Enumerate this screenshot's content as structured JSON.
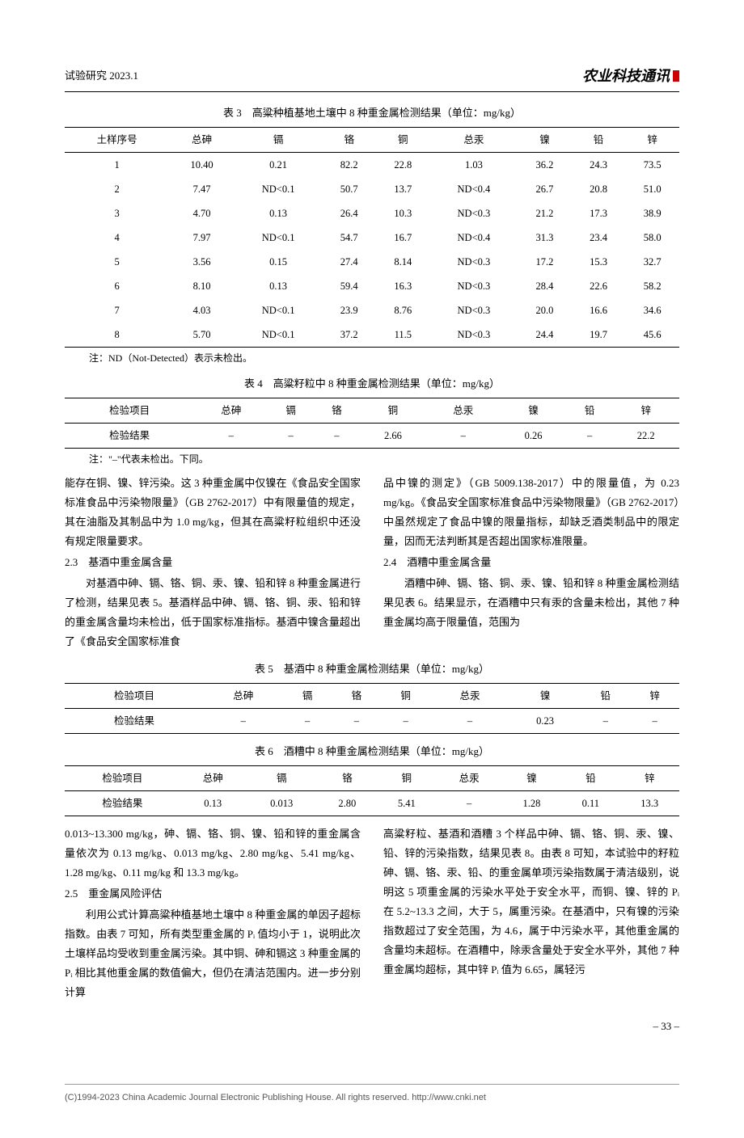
{
  "header": {
    "left": "试验研究 2023.1",
    "journal": "农业科技通讯"
  },
  "table3": {
    "caption": "表 3　高粱种植基地土壤中 8 种重金属检测结果（单位：mg/kg）",
    "headers": [
      "土样序号",
      "总砷",
      "镉",
      "铬",
      "铜",
      "总汞",
      "镍",
      "铅",
      "锌"
    ],
    "rows": [
      [
        "1",
        "10.40",
        "0.21",
        "82.2",
        "22.8",
        "1.03",
        "36.2",
        "24.3",
        "73.5"
      ],
      [
        "2",
        "7.47",
        "ND<0.1",
        "50.7",
        "13.7",
        "ND<0.4",
        "26.7",
        "20.8",
        "51.0"
      ],
      [
        "3",
        "4.70",
        "0.13",
        "26.4",
        "10.3",
        "ND<0.3",
        "21.2",
        "17.3",
        "38.9"
      ],
      [
        "4",
        "7.97",
        "ND<0.1",
        "54.7",
        "16.7",
        "ND<0.4",
        "31.3",
        "23.4",
        "58.0"
      ],
      [
        "5",
        "3.56",
        "0.15",
        "27.4",
        "8.14",
        "ND<0.3",
        "17.2",
        "15.3",
        "32.7"
      ],
      [
        "6",
        "8.10",
        "0.13",
        "59.4",
        "16.3",
        "ND<0.3",
        "28.4",
        "22.6",
        "58.2"
      ],
      [
        "7",
        "4.03",
        "ND<0.1",
        "23.9",
        "8.76",
        "ND<0.3",
        "20.0",
        "16.6",
        "34.6"
      ],
      [
        "8",
        "5.70",
        "ND<0.1",
        "37.2",
        "11.5",
        "ND<0.3",
        "24.4",
        "19.7",
        "45.6"
      ]
    ],
    "note": "注：ND（Not-Detected）表示未检出。"
  },
  "table4": {
    "caption": "表 4　高粱籽粒中 8 种重金属检测结果（单位：mg/kg）",
    "headers": [
      "检验项目",
      "总砷",
      "镉",
      "铬",
      "铜",
      "总汞",
      "镍",
      "铅",
      "锌"
    ],
    "row": [
      "检验结果",
      "–",
      "–",
      "–",
      "2.66",
      "–",
      "0.26",
      "–",
      "22.2"
    ],
    "note": "注：\"–\"代表未检出。下同。"
  },
  "body1": {
    "left_p1": "能存在铜、镍、锌污染。这 3 种重金属中仅镍在《食品安全国家标准食品中污染物限量》（GB 2762-2017）中有限量值的规定，其在油脂及其制品中为 1.0 mg/kg，但其在高粱籽粒组织中还没有规定限量要求。",
    "left_h23": "2.3　基酒中重金属含量",
    "left_p2": "对基酒中砷、镉、铬、铜、汞、镍、铅和锌 8 种重金属进行了检测，结果见表 5。基酒样品中砷、镉、铬、铜、汞、铅和锌的重金属含量均未检出，低于国家标准指标。基酒中镍含量超出了《食品安全国家标准食",
    "right_p1": "品中镍的测定》（GB 5009.138-2017）中的限量值，为 0.23 mg/kg。《食品安全国家标准食品中污染物限量》（GB 2762-2017）中虽然规定了食品中镍的限量指标，却缺乏酒类制品中的限定量，因而无法判断其是否超出国家标准限量。",
    "right_h24": "2.4　酒糟中重金属含量",
    "right_p2": "酒糟中砷、镉、铬、铜、汞、镍、铅和锌 8 种重金属检测结果见表 6。结果显示，在酒糟中只有汞的含量未检出，其他 7 种重金属均高于限量值，范围为"
  },
  "table5": {
    "caption": "表 5　基酒中 8 种重金属检测结果（单位：mg/kg）",
    "headers": [
      "检验项目",
      "总砷",
      "镉",
      "铬",
      "铜",
      "总汞",
      "镍",
      "铅",
      "锌"
    ],
    "row": [
      "检验结果",
      "–",
      "–",
      "–",
      "–",
      "–",
      "0.23",
      "–",
      "–"
    ]
  },
  "table6": {
    "caption": "表 6　酒糟中 8 种重金属检测结果（单位：mg/kg）",
    "headers": [
      "检验项目",
      "总砷",
      "镉",
      "铬",
      "铜",
      "总汞",
      "镍",
      "铅",
      "锌"
    ],
    "row": [
      "检验结果",
      "0.13",
      "0.013",
      "2.80",
      "5.41",
      "–",
      "1.28",
      "0.11",
      "13.3"
    ]
  },
  "body2": {
    "left_p1": "0.013~13.300 mg/kg，砷、镉、铬、铜、镍、铅和锌的重金属含量依次为 0.13 mg/kg、0.013 mg/kg、2.80 mg/kg、5.41 mg/kg、1.28 mg/kg、0.11 mg/kg 和 13.3 mg/kg。",
    "left_h25": "2.5　重金属风险评估",
    "left_p2": "利用公式计算高粱种植基地土壤中 8 种重金属的单因子超标指数。由表 7 可知，所有类型重金属的 Pᵢ 值均小于 1，说明此次土壤样品均受收到重金属污染。其中铜、砷和镉这 3 种重金属的 Pᵢ 相比其他重金属的数值偏大，但仍在清洁范围内。进一步分别计算",
    "right_p1": "高粱籽粒、基酒和酒糟 3 个样品中砷、镉、铬、铜、汞、镍、铅、锌的污染指数，结果见表 8。由表 8 可知，本试验中的籽粒砷、镉、铬、汞、铅、的重金属单项污染指数属于清洁级别，说明这 5 项重金属的污染水平处于安全水平，而铜、镍、锌的 Pᵢ 在 5.2~13.3 之间，大于 5，属重污染。在基酒中，只有镍的污染指数超过了安全范围，为 4.6，属于中污染水平，其他重金属的含量均未超标。在酒糟中，除汞含量处于安全水平外，其他 7 种重金属均超标，其中锌 Pᵢ 值为 6.65，属轻污"
  },
  "pagenum": "– 33 –",
  "footer": "(C)1994-2023 China Academic Journal Electronic Publishing House. All rights reserved.    http://www.cnki.net"
}
